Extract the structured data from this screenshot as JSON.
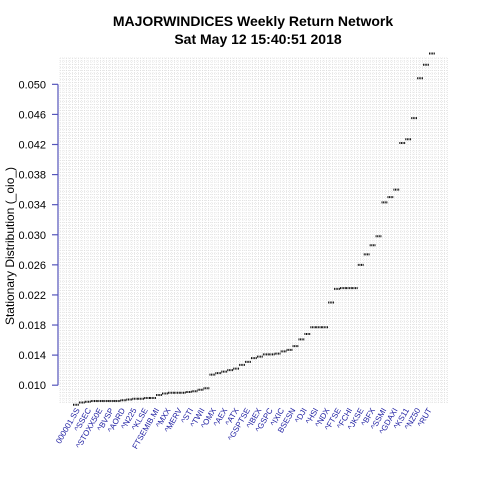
{
  "chart_data": {
    "type": "scatter",
    "title": "MAJORWINDICES  Weekly Return Network",
    "subtitle": "Sat May 12 15:40:51 2018",
    "ylabel": "Stationary Distribution (_oio_)",
    "xlabel": "",
    "ylim": [
      0.0075,
      0.0535
    ],
    "y_ticks": [
      0.01,
      0.014,
      0.018,
      0.022,
      0.026,
      0.03,
      0.034,
      0.038,
      0.042,
      0.046,
      0.05
    ],
    "y_tick_labels": [
      "0.010",
      "0.014",
      "0.018",
      "0.022",
      "0.026",
      "0.030",
      "0.034",
      "0.038",
      "0.042",
      "0.046",
      "0.050"
    ],
    "grid": true,
    "x_tick_labels": [
      "000001.SS",
      "^SSEC",
      "^STOXX50E",
      "^BVSP",
      "^AORD",
      "^N225",
      "^KLSE",
      "FTSEMIB.MI",
      "^MXX",
      "^MERV",
      "^STI",
      "^TWII",
      "^OMX",
      "^AEX",
      "^ATX",
      "^GSPTSE",
      "^IBEX",
      "^GSPC",
      "^IXIC",
      "BSESN",
      "^DJI",
      "^HSI",
      "^NDX",
      "^FTSE",
      "^FCHI",
      "^JKSE",
      "^BFX",
      "^SSMI",
      "^GDAXI",
      "^KS11",
      "^NZ50",
      "^RUT"
    ],
    "values": [
      0.0074,
      0.0077,
      0.0078,
      0.0079,
      0.0079,
      0.0079,
      0.0079,
      0.0079,
      0.008,
      0.0081,
      0.0082,
      0.0082,
      0.0083,
      0.0083,
      0.0087,
      0.0089,
      0.009,
      0.009,
      0.009,
      0.0091,
      0.0092,
      0.0094,
      0.0096,
      0.0114,
      0.0116,
      0.0118,
      0.012,
      0.0122,
      0.0127,
      0.0131,
      0.0136,
      0.0138,
      0.0141,
      0.0141,
      0.0142,
      0.0145,
      0.0147,
      0.0152,
      0.0161,
      0.0168,
      0.0177,
      0.0177,
      0.0177,
      0.021,
      0.0228,
      0.0229,
      0.0229,
      0.0229,
      0.026,
      0.0274,
      0.0286,
      0.0298,
      0.0343,
      0.035,
      0.036,
      0.0422,
      0.0427,
      0.0455,
      0.0508,
      0.0526,
      0.0541
    ]
  }
}
